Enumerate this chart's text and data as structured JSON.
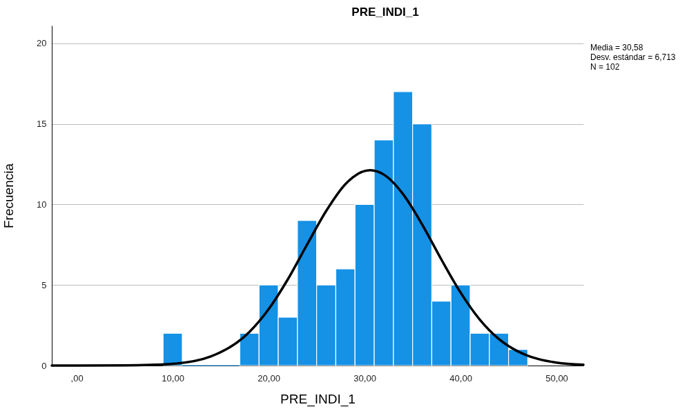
{
  "chart_data": {
    "type": "histogram",
    "title": "PRE_INDI_1",
    "xlabel": "PRE_INDI_1",
    "ylabel": "Frecuencia",
    "bins": [
      9,
      11,
      13,
      15,
      17,
      19,
      21,
      23,
      25,
      27,
      29,
      31,
      33,
      35,
      37,
      39,
      41,
      43,
      45,
      47
    ],
    "series": [
      {
        "type": "histogram",
        "color": "#1591e5",
        "values": [
          2,
          0,
          0,
          0,
          2,
          5,
          3,
          9,
          5,
          6,
          10,
          14,
          17,
          15,
          4,
          5,
          2,
          2,
          1
        ]
      },
      {
        "type": "line",
        "color": "#000000",
        "x": [
          -2.6,
          0,
          5,
          10,
          14,
          18,
          20,
          22,
          24,
          26,
          28,
          30.58,
          32,
          34,
          36,
          38,
          40,
          42,
          44,
          46,
          48,
          50,
          52.8
        ],
        "values": [
          0,
          0,
          0.01,
          0.11,
          0.57,
          2.09,
          3.5,
          5.35,
          7.5,
          9.6,
          11.26,
          12.12,
          11.85,
          10.64,
          8.75,
          6.58,
          4.53,
          2.85,
          1.64,
          0.87,
          0.42,
          0.18,
          0.05
        ]
      }
    ],
    "xlim": [
      -2.6,
      52.8
    ],
    "xticks": [
      {
        "value": 0,
        "label": ",00"
      },
      {
        "value": 10,
        "label": "10,00"
      },
      {
        "value": 20,
        "label": "20,00"
      },
      {
        "value": 30,
        "label": "30,00"
      },
      {
        "value": 40,
        "label": "40,00"
      },
      {
        "value": 50,
        "label": "50,00"
      }
    ],
    "ylim": [
      0,
      21.1
    ],
    "yticks": [
      0,
      5,
      10,
      15,
      20
    ],
    "grid": "y",
    "legend": false,
    "line_style": "solid",
    "marker": "none",
    "annotations": [
      "Media = 30,58",
      "Desv. estándar = 6,713",
      "N = 102"
    ]
  }
}
